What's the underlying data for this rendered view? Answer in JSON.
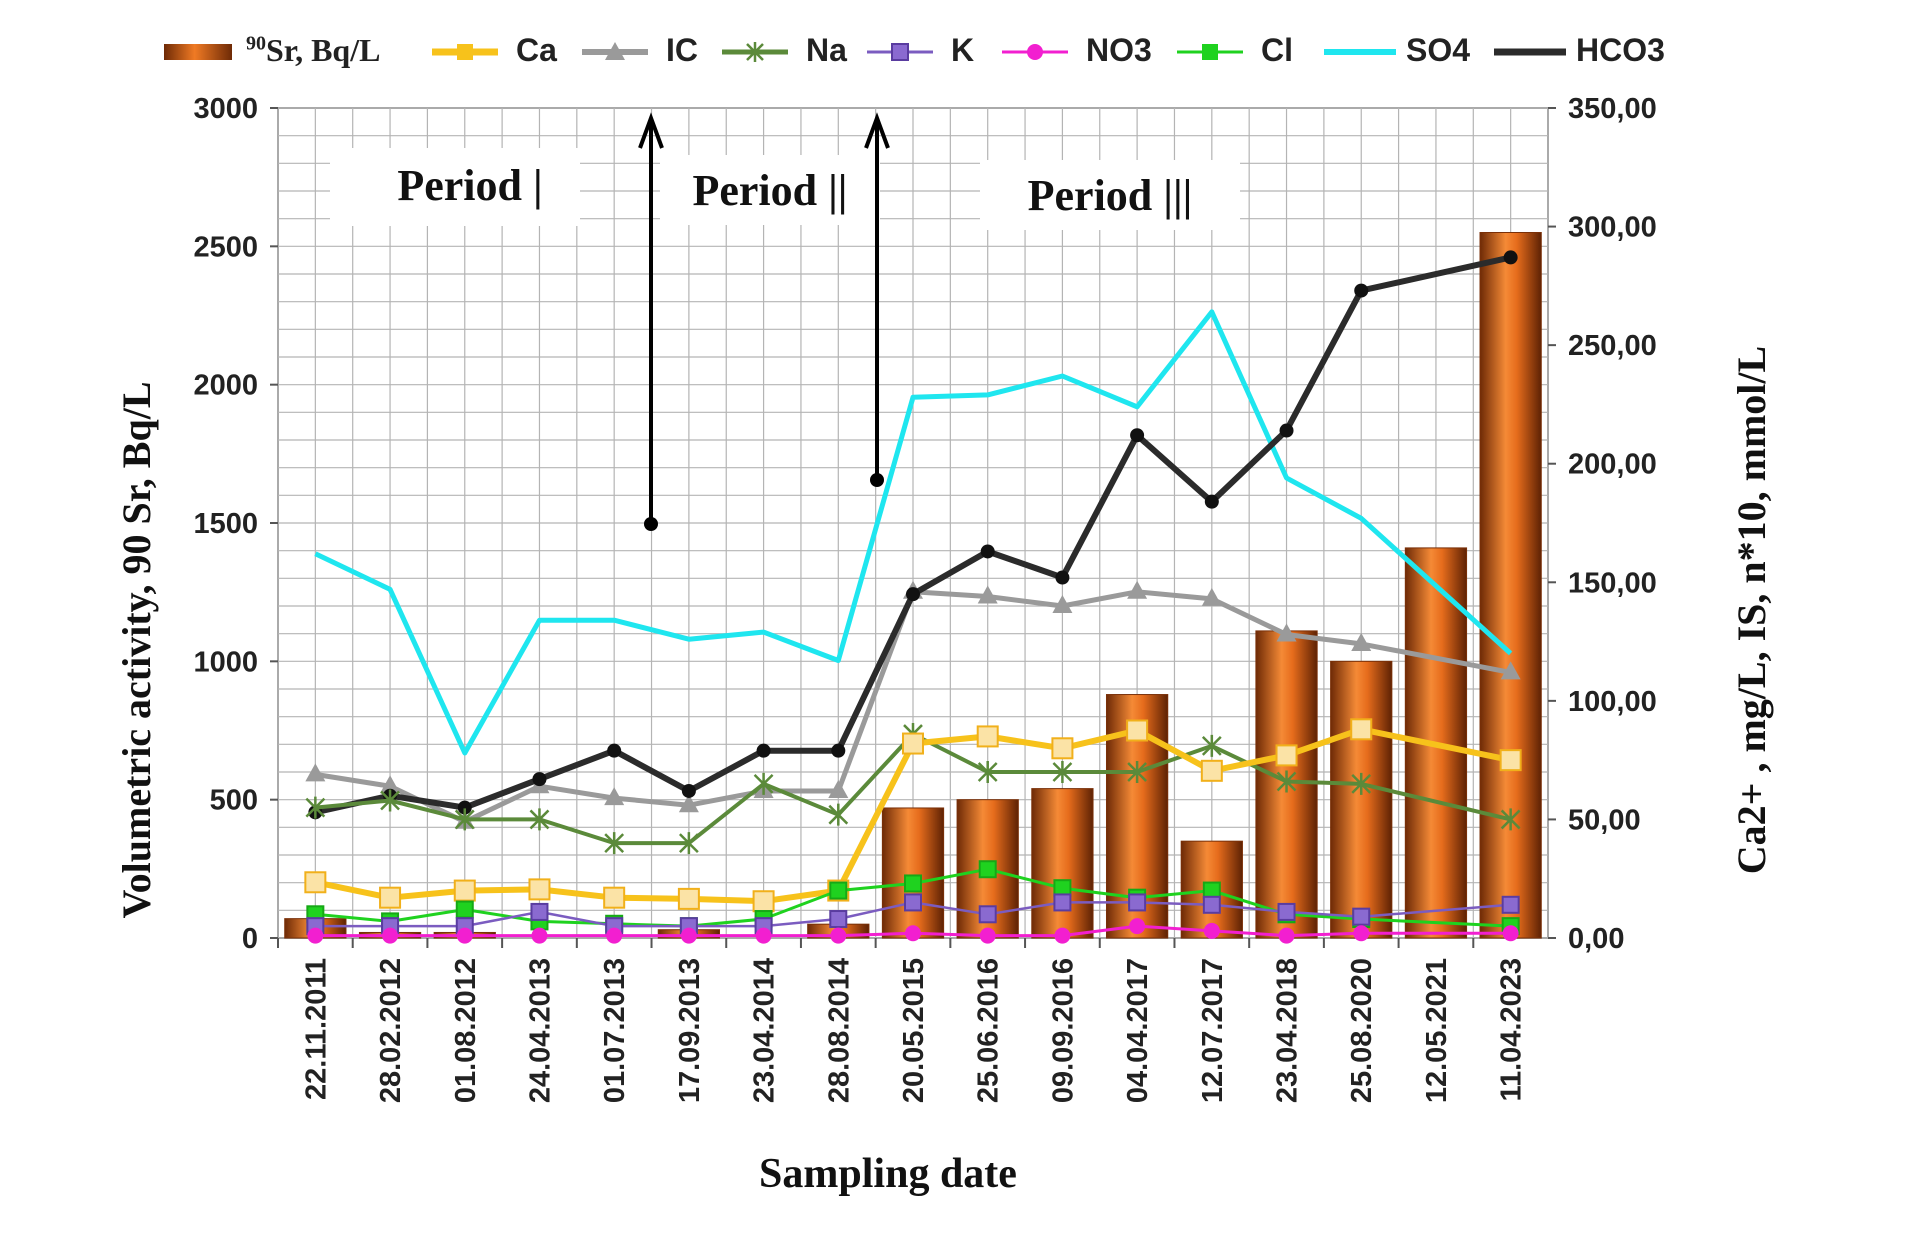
{
  "figure": {
    "left_axis_label": "Volumetric activity, 90 Sr, Bq/L",
    "right_axis_label": "Ca2+ , mg/L, IS, n*10, mmol/L",
    "x_axis_label": "Sampling date"
  },
  "periods": [
    "Period |",
    "Period ||",
    "Period |||"
  ],
  "legend": [
    {
      "key": "sr",
      "label_sup": "90",
      "label": "Sr,  Bq/L",
      "color": "#d9641c",
      "icon": "bar-swatch"
    },
    {
      "key": "ca",
      "label": "Ca",
      "color": "#f7c21b",
      "icon": "square-marker"
    },
    {
      "key": "ic",
      "label": "IC",
      "color": "#9a9a9a",
      "icon": "triangle-marker"
    },
    {
      "key": "na",
      "label": "Na",
      "color": "#5b8a3a",
      "icon": "star-marker"
    },
    {
      "key": "k",
      "label": "K",
      "color": "#7b5cc0",
      "icon": "square-marker"
    },
    {
      "key": "no3",
      "label": "NO3",
      "color": "#f21fd0",
      "icon": "circle-marker"
    },
    {
      "key": "cl",
      "label": "Cl",
      "color": "#1fd21f",
      "icon": "square-marker"
    },
    {
      "key": "so4",
      "label": "SO4",
      "color": "#1fe6ef",
      "icon": "line"
    },
    {
      "key": "hco3",
      "label": "HCO3",
      "color": "#2b2b2b",
      "icon": "line"
    }
  ],
  "chart_data": {
    "type": "bar",
    "xlabel": "Sampling date",
    "ylabel": "Volumetric activity, 90 Sr, Bq/L",
    "y2label": "Ca2+ , mg/L, IS, n*10, mmol/L",
    "ylim": [
      0,
      3000
    ],
    "y2lim": [
      0,
      350
    ],
    "yticks": [
      "0",
      "500",
      "1000",
      "1500",
      "2000",
      "2500",
      "3000"
    ],
    "y2ticks": [
      "0,00",
      "50,00",
      "100,00",
      "150,00",
      "200,00",
      "250,00",
      "300,00",
      "350,00"
    ],
    "grid": true,
    "legend_position": "top",
    "categories": [
      "22.11.2011",
      "28.02.2012",
      "01.08.2012",
      "24.04.2013",
      "01.07.2013",
      "17.09.2013",
      "23.04.2014",
      "28.08.2014",
      "20.05.2015",
      "25.06.2016",
      "09.09.2016",
      "04.04.2017",
      "12.07.2017",
      "23.04.2018",
      "25.08.2020",
      "12.05.2021",
      "11.04.2023"
    ],
    "bars": {
      "name": "90Sr, Bq/L",
      "axis": "left",
      "values": [
        70,
        20,
        20,
        null,
        null,
        30,
        null,
        50,
        470,
        500,
        540,
        880,
        350,
        1110,
        1000,
        1410,
        2550
      ]
    },
    "series": [
      {
        "name": "Ca",
        "axis": "right",
        "values": [
          23.5,
          17,
          20,
          20.5,
          17,
          16.5,
          15.5,
          20,
          82,
          85,
          80,
          87.5,
          70.5,
          77,
          88,
          null,
          75
        ]
      },
      {
        "name": "IC",
        "axis": "right",
        "values": [
          69,
          64,
          49,
          64,
          59,
          56,
          62,
          62,
          146,
          144,
          140,
          146,
          143,
          128,
          124,
          null,
          112
        ]
      },
      {
        "name": "Na",
        "axis": "right",
        "values": [
          55,
          58,
          50,
          50,
          40,
          40,
          65,
          52,
          86,
          70,
          70,
          70,
          81,
          66,
          65,
          null,
          50
        ]
      },
      {
        "name": "K",
        "axis": "right",
        "values": [
          5,
          5,
          5,
          11,
          5,
          5,
          5,
          8,
          15,
          10,
          15,
          15,
          14,
          11,
          9,
          null,
          14
        ]
      },
      {
        "name": "NO3",
        "axis": "right",
        "values": [
          1,
          1,
          1,
          1,
          1,
          1,
          1,
          1,
          2,
          1,
          1,
          5,
          3,
          1,
          2,
          null,
          2
        ]
      },
      {
        "name": "Cl",
        "axis": "right",
        "values": [
          10,
          7,
          12,
          7,
          6,
          5,
          8,
          20,
          23,
          29,
          21,
          17,
          20,
          10,
          8,
          null,
          5
        ]
      },
      {
        "name": "SO4",
        "axis": "right",
        "values": [
          162,
          147,
          78,
          134,
          134,
          126,
          129,
          117,
          228,
          229,
          237,
          224,
          264,
          194,
          177,
          null,
          120
        ]
      },
      {
        "name": "HCO3",
        "axis": "right",
        "values": [
          53,
          60,
          55,
          67,
          79,
          62,
          79,
          79,
          145,
          163,
          152,
          212,
          184,
          214,
          273,
          null,
          287
        ]
      }
    ]
  }
}
